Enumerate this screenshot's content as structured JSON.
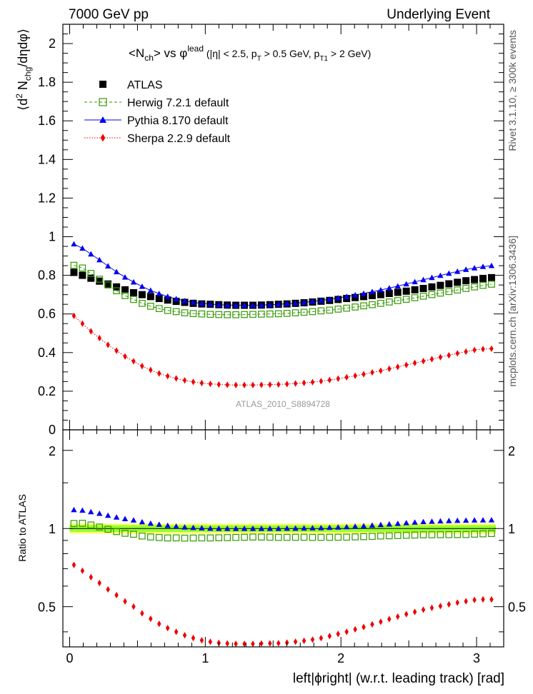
{
  "header": {
    "left": "7000 GeV pp",
    "right": "Underlying Event"
  },
  "side_text": {
    "rivet": "Rivet 3.1.10, ≥ 300k events",
    "mcplots": "mcplots.cern.ch [arXiv:1306.3436]"
  },
  "watermark": "ATLAS_2010_S8894728",
  "chart_data": {
    "type": "scatter",
    "title_parts": {
      "a": "<N",
      "a_sub": "ch",
      "b": "> vs φ",
      "b_sup": "lead",
      "c": " (|η| < 2.5, p",
      "c_sub": "T",
      "d": " > 0.5 GeV, p",
      "d_sub": "T1",
      "e": " > 2 GeV)"
    },
    "ylabel_parts": {
      "a": "⟨d",
      "a_sup": "2",
      "b": " N",
      "b_sub": "chg",
      "c": "/dηdφ⟩"
    },
    "ratio_ylabel": "Ratio to ATLAS",
    "xlabel": "left|ϕright| (w.r.t. leading track) [rad]",
    "xlim": [
      -0.05,
      3.2
    ],
    "ylim": [
      0,
      2.1
    ],
    "ratio_ylim": [
      0.35,
      2.4
    ],
    "x_ticks": [
      "0",
      "1",
      "2",
      "3"
    ],
    "y_ticks": [
      "0",
      "0.2",
      "0.4",
      "0.6",
      "0.8",
      "1",
      "1.2",
      "1.4",
      "1.6",
      "1.8",
      "2"
    ],
    "ratio_ticks": [
      "0.5",
      "1",
      "2"
    ],
    "x": [
      0.0314,
      0.0942,
      0.157,
      0.2199,
      0.2827,
      0.3456,
      0.4084,
      0.4712,
      0.5341,
      0.5969,
      0.6597,
      0.7226,
      0.7854,
      0.8482,
      0.9111,
      0.9739,
      1.0367,
      1.0996,
      1.1624,
      1.2252,
      1.2881,
      1.3509,
      1.4137,
      1.4765,
      1.5394,
      1.6022,
      1.665,
      1.7279,
      1.7907,
      1.8535,
      1.9164,
      1.9792,
      2.042,
      2.1049,
      2.1677,
      2.2305,
      2.2934,
      2.3562,
      2.419,
      2.4819,
      2.5447,
      2.6075,
      2.6704,
      2.7332,
      2.796,
      2.8588,
      2.9217,
      2.9845,
      3.0473,
      3.1102
    ],
    "series": [
      {
        "name": "ATLAS",
        "color": "#000000",
        "marker": "filled-square",
        "values": [
          0.815,
          0.8,
          0.785,
          0.77,
          0.755,
          0.74,
          0.725,
          0.71,
          0.7,
          0.69,
          0.68,
          0.672,
          0.665,
          0.66,
          0.655,
          0.652,
          0.65,
          0.648,
          0.646,
          0.645,
          0.645,
          0.645,
          0.646,
          0.648,
          0.65,
          0.652,
          0.655,
          0.658,
          0.662,
          0.666,
          0.67,
          0.675,
          0.68,
          0.685,
          0.69,
          0.695,
          0.7,
          0.706,
          0.712,
          0.718,
          0.725,
          0.732,
          0.74,
          0.748,
          0.756,
          0.764,
          0.772,
          0.778,
          0.784,
          0.788
        ]
      },
      {
        "name": "Herwig 7.2.1 default",
        "color": "#339900",
        "marker": "open-square",
        "line": "dashed",
        "values": [
          0.852,
          0.838,
          0.81,
          0.78,
          0.75,
          0.72,
          0.695,
          0.675,
          0.655,
          0.64,
          0.628,
          0.618,
          0.612,
          0.606,
          0.602,
          0.6,
          0.598,
          0.597,
          0.596,
          0.596,
          0.597,
          0.598,
          0.599,
          0.6,
          0.601,
          0.603,
          0.606,
          0.609,
          0.612,
          0.616,
          0.62,
          0.625,
          0.63,
          0.636,
          0.642,
          0.648,
          0.655,
          0.662,
          0.669,
          0.676,
          0.684,
          0.692,
          0.7,
          0.708,
          0.716,
          0.724,
          0.732,
          0.74,
          0.748,
          0.754
        ]
      },
      {
        "name": "Pythia 8.170 default",
        "color": "#0000ee",
        "marker": "filled-triangle",
        "line": "solid",
        "values": [
          0.962,
          0.94,
          0.91,
          0.88,
          0.848,
          0.818,
          0.79,
          0.765,
          0.742,
          0.722,
          0.705,
          0.69,
          0.678,
          0.668,
          0.66,
          0.655,
          0.651,
          0.648,
          0.646,
          0.645,
          0.645,
          0.645,
          0.646,
          0.648,
          0.65,
          0.653,
          0.656,
          0.66,
          0.665,
          0.67,
          0.676,
          0.683,
          0.69,
          0.698,
          0.706,
          0.715,
          0.724,
          0.734,
          0.744,
          0.755,
          0.766,
          0.777,
          0.788,
          0.799,
          0.81,
          0.82,
          0.83,
          0.838,
          0.845,
          0.85
        ]
      },
      {
        "name": "Sherpa 2.2.9 default",
        "color": "#ee0000",
        "marker": "filled-diamond",
        "line": "dotted",
        "values": [
          0.59,
          0.55,
          0.51,
          0.475,
          0.44,
          0.41,
          0.38,
          0.355,
          0.33,
          0.31,
          0.292,
          0.278,
          0.266,
          0.256,
          0.248,
          0.242,
          0.238,
          0.235,
          0.233,
          0.232,
          0.232,
          0.232,
          0.233,
          0.234,
          0.235,
          0.237,
          0.24,
          0.243,
          0.247,
          0.252,
          0.258,
          0.265,
          0.272,
          0.28,
          0.288,
          0.297,
          0.306,
          0.316,
          0.326,
          0.336,
          0.346,
          0.356,
          0.366,
          0.376,
          0.386,
          0.396,
          0.405,
          0.413,
          0.418,
          0.42
        ]
      }
    ],
    "legend": {
      "placement": "top-left",
      "entries": [
        "ATLAS",
        "Herwig 7.2.1 default",
        "Pythia 8.170 default",
        "Sherpa 2.2.9 default"
      ]
    },
    "band_colors": {
      "inner": "#99ff33",
      "outer": "#ffff66"
    }
  }
}
